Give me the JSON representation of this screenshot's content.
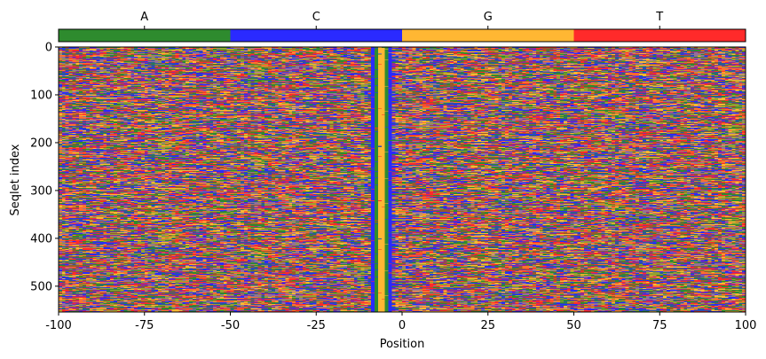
{
  "chart_data": {
    "type": "heatmap",
    "title": "",
    "xlabel": "Position",
    "ylabel": "Seqlet index",
    "x_range": [
      -100,
      100
    ],
    "y_range": [
      0,
      554
    ],
    "x_ticks": [
      -100,
      -75,
      -50,
      -25,
      0,
      25,
      50,
      75,
      100
    ],
    "x_tick_labels": [
      "-100",
      "-75",
      "-50",
      "-25",
      "0",
      "25",
      "50",
      "75",
      "100"
    ],
    "y_ticks": [
      0,
      100,
      200,
      300,
      400,
      500
    ],
    "y_tick_labels": [
      "0",
      "100",
      "200",
      "300",
      "400",
      "500"
    ],
    "n_rows": 554,
    "positions": 200,
    "categories": [
      "A",
      "C",
      "G",
      "T"
    ],
    "colors": {
      "A": "#2e8b2e",
      "C": "#2a2aff",
      "G": "#ffb733",
      "T": "#ff2a2a"
    },
    "conserved_columns": [
      {
        "position": -9,
        "base": "C"
      },
      {
        "position": -8,
        "base": "A"
      },
      {
        "position": -7,
        "base": "G"
      },
      {
        "position": -6,
        "base": "G"
      },
      {
        "position": -5,
        "base": "A"
      },
      {
        "position": -4,
        "base": "C"
      }
    ],
    "colorbar": {
      "labels": [
        "A",
        "C",
        "G",
        "T"
      ],
      "position": "top"
    },
    "grid": false
  }
}
